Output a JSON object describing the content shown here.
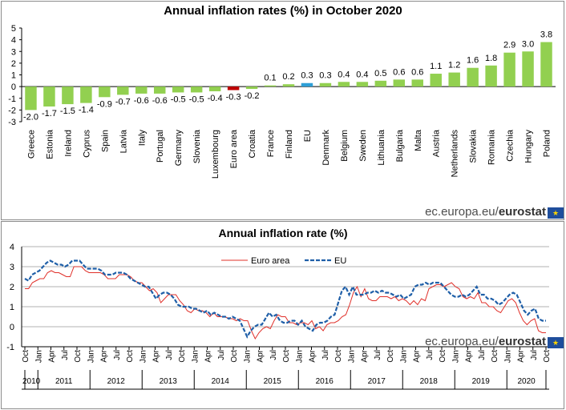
{
  "brand": {
    "domain": "ec.europa.eu/",
    "name": "eurostat",
    "flag_icon": "eu-flag-icon"
  },
  "chart_data": [
    {
      "type": "bar",
      "title": "Annual inflation rates (%) in October 2020",
      "categories": [
        "Greece",
        "Estonia",
        "Ireland",
        "Cyprus",
        "Spain",
        "Latvia",
        "Italy",
        "Portugal",
        "Germany",
        "Slovenia",
        "Luxembourg",
        "Euro area",
        "Croatia",
        "France",
        "Finland",
        "EU",
        "Denmark",
        "Belgium",
        "Sweden",
        "Lithuania",
        "Bulgaria",
        "Malta",
        "Austria",
        "Netherlands",
        "Slovakia",
        "Romania",
        "Czechia",
        "Hungary",
        "Poland"
      ],
      "values": [
        -2.0,
        -1.7,
        -1.5,
        -1.4,
        -0.9,
        -0.7,
        -0.6,
        -0.6,
        -0.5,
        -0.5,
        -0.4,
        -0.3,
        -0.2,
        0.1,
        0.2,
        0.3,
        0.3,
        0.4,
        0.4,
        0.5,
        0.6,
        0.6,
        1.1,
        1.2,
        1.6,
        1.8,
        2.9,
        3.0,
        3.8
      ],
      "value_labels": [
        "-2.0",
        "-1.7",
        "-1.5",
        "-1.4",
        "-0.9",
        "-0.7",
        "-0.6",
        "-0.6",
        "-0.5",
        "-0.5",
        "-0.4",
        "-0.3",
        "-0.2",
        "0.1",
        "0.2",
        "0.3",
        "0.3",
        "0.4",
        "0.4",
        "0.5",
        "0.6",
        "0.6",
        "1.1",
        "1.2",
        "1.6",
        "1.8",
        "2.9",
        "3.0",
        "3.8"
      ],
      "ylim": [
        -3,
        5
      ],
      "yticks": [
        "-3",
        "-2",
        "-1",
        "0",
        "1",
        "2",
        "3",
        "4",
        "5"
      ],
      "colors": {
        "default": "#92d050",
        "Euro area": "#c00000",
        "EU": "#2e9fd7"
      }
    },
    {
      "type": "line",
      "title": "Annual inflation rate (%)",
      "ylim": [
        -1,
        4
      ],
      "yticks": [
        "-1",
        "0",
        "1",
        "2",
        "3",
        "4"
      ],
      "month_labels": [
        "Oct",
        "Jan",
        "Apr",
        "Jul",
        "Oct",
        "Jan",
        "Apr",
        "Jul",
        "Oct",
        "Jan",
        "Apr",
        "Jul",
        "Oct",
        "Jan",
        "Apr",
        "Jul",
        "Oct",
        "Jan",
        "Apr",
        "Jul",
        "Oct",
        "Jan",
        "Apr",
        "Jul",
        "Oct",
        "Jan",
        "Apr",
        "Jul",
        "Oct",
        "Jan",
        "Apr",
        "Jul",
        "Oct",
        "Jan",
        "Apr",
        "Jul",
        "Oct",
        "Jan",
        "Apr",
        "Jul",
        "Oct"
      ],
      "year_labels": [
        "2010",
        "2011",
        "2012",
        "2013",
        "2014",
        "2015",
        "2016",
        "2017",
        "2018",
        "2019",
        "2020"
      ],
      "x_start": "2010-10",
      "x_end": "2020-10",
      "legend_position": "top-center",
      "series": [
        {
          "name": "Euro area",
          "color": "#e0302a",
          "style": "solid",
          "values": [
            1.9,
            1.9,
            2.2,
            2.3,
            2.4,
            2.4,
            2.7,
            2.8,
            2.7,
            2.7,
            2.6,
            2.5,
            2.5,
            3.0,
            3.0,
            3.0,
            2.8,
            2.7,
            2.7,
            2.7,
            2.7,
            2.6,
            2.4,
            2.4,
            2.4,
            2.6,
            2.6,
            2.6,
            2.5,
            2.3,
            2.2,
            2.2,
            2.0,
            1.8,
            1.9,
            1.7,
            1.2,
            1.4,
            1.6,
            1.6,
            1.6,
            1.3,
            1.1,
            0.8,
            0.7,
            0.9,
            0.8,
            0.8,
            0.7,
            0.5,
            0.7,
            0.5,
            0.5,
            0.5,
            0.4,
            0.4,
            0.3,
            0.4,
            0.3,
            0.3,
            -0.2,
            -0.6,
            -0.3,
            -0.1,
            0.0,
            -0.1,
            0.3,
            0.6,
            0.5,
            0.5,
            0.2,
            0.2,
            0.1,
            0.2,
            0.2,
            0.1,
            0.3,
            -0.1,
            0.0,
            -0.2,
            0.1,
            0.2,
            0.2,
            0.3,
            0.5,
            0.6,
            1.1,
            1.7,
            2.0,
            1.5,
            1.9,
            1.4,
            1.3,
            1.3,
            1.5,
            1.5,
            1.5,
            1.4,
            1.5,
            1.3,
            1.4,
            1.3,
            1.1,
            1.3,
            1.1,
            1.4,
            1.3,
            1.9,
            2.0,
            2.1,
            2.1,
            2.0,
            2.1,
            2.2,
            2.0,
            1.9,
            1.5,
            1.4,
            1.5,
            1.4,
            1.7,
            1.2,
            1.2,
            1.0,
            1.0,
            0.8,
            0.7,
            1.0,
            1.3,
            1.4,
            1.2,
            0.7,
            0.3,
            0.1,
            0.3,
            0.4,
            -0.2,
            -0.3,
            -0.3
          ]
        },
        {
          "name": "EU",
          "color": "#1f5fa8",
          "style": "dashed",
          "values": [
            2.4,
            2.3,
            2.6,
            2.7,
            2.8,
            3.0,
            3.2,
            3.3,
            3.2,
            3.1,
            3.1,
            3.0,
            3.1,
            3.3,
            3.3,
            3.3,
            3.1,
            2.9,
            2.9,
            2.9,
            2.9,
            2.8,
            2.6,
            2.6,
            2.6,
            2.7,
            2.7,
            2.7,
            2.6,
            2.4,
            2.3,
            2.2,
            2.1,
            2.0,
            2.0,
            1.7,
            1.4,
            1.6,
            1.7,
            1.7,
            1.6,
            1.4,
            1.1,
            1.0,
            1.0,
            1.0,
            0.9,
            0.9,
            0.8,
            0.7,
            0.8,
            0.6,
            0.7,
            0.6,
            0.5,
            0.5,
            0.4,
            0.5,
            0.4,
            0.3,
            -0.1,
            -0.5,
            -0.2,
            0.0,
            0.1,
            0.1,
            0.4,
            0.7,
            0.5,
            0.6,
            0.3,
            0.2,
            0.2,
            0.3,
            0.3,
            0.1,
            0.3,
            0.0,
            -0.1,
            -0.2,
            0.1,
            0.2,
            0.2,
            0.3,
            0.5,
            0.6,
            1.2,
            1.8,
            2.0,
            1.6,
            2.0,
            1.6,
            1.6,
            1.6,
            1.7,
            1.7,
            1.8,
            1.7,
            1.8,
            1.7,
            1.7,
            1.6,
            1.5,
            1.6,
            1.4,
            1.5,
            1.6,
            2.0,
            2.1,
            2.1,
            2.2,
            2.1,
            2.2,
            2.2,
            2.2,
            2.0,
            1.8,
            1.6,
            1.5,
            1.5,
            1.6,
            1.5,
            1.6,
            1.8,
            2.0,
            1.6,
            1.6,
            1.4,
            1.4,
            1.3,
            1.1,
            1.2,
            1.4,
            1.6,
            1.7,
            1.6,
            1.2,
            0.8,
            0.6,
            0.8,
            0.9,
            0.4,
            0.3,
            0.3
          ]
        }
      ]
    }
  ]
}
